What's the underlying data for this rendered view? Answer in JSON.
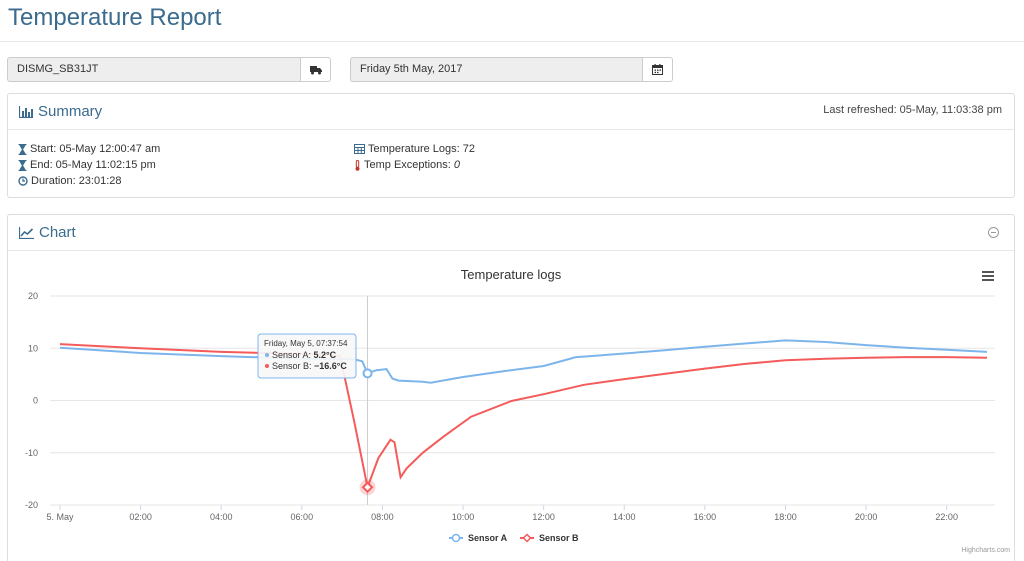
{
  "page": {
    "title": "Temperature Report"
  },
  "filters": {
    "device": {
      "value": "DISMG_SB31JT",
      "icon": "truck-icon"
    },
    "date": {
      "value": "Friday 5th May, 2017",
      "icon": "calendar-icon"
    }
  },
  "summary": {
    "title": "Summary",
    "last_refreshed": "Last refreshed: 05-May, 11:03:38 pm",
    "start": "Start: 05-May 12:00:47 am",
    "end": "End: 05-May 11:02:15 pm",
    "duration": "Duration: 23:01:28",
    "temperature_logs": "Temperature Logs: 72",
    "temp_exceptions_label": "Temp Exceptions: ",
    "temp_exceptions_value": "0"
  },
  "chart_panel": {
    "title": "Chart"
  },
  "chart_data": {
    "type": "line",
    "title": "Temperature logs",
    "xlabel": "",
    "ylabel": "",
    "x_ticks": [
      "5. May",
      "02:00",
      "04:00",
      "06:00",
      "08:00",
      "10:00",
      "12:00",
      "14:00",
      "16:00",
      "18:00",
      "20:00",
      "22:00"
    ],
    "y_ticks": [
      "20",
      "10",
      "0",
      "-10",
      "-20"
    ],
    "xlim_hours": [
      0,
      23
    ],
    "ylim": [
      -20,
      20
    ],
    "grid": true,
    "legend_placement": "bottom-center",
    "series": [
      {
        "name": "Sensor A",
        "color": "#7cb5ec",
        "points": [
          [
            0,
            10.1
          ],
          [
            2,
            9.1
          ],
          [
            4,
            8.5
          ],
          [
            6,
            8.0
          ],
          [
            7.3,
            7.9
          ],
          [
            7.5,
            7.5
          ],
          [
            7.63,
            5.2
          ],
          [
            7.85,
            5.8
          ],
          [
            8.1,
            6.0
          ],
          [
            8.25,
            4.2
          ],
          [
            8.4,
            3.8
          ],
          [
            9,
            3.6
          ],
          [
            9.2,
            3.4
          ],
          [
            10,
            4.5
          ],
          [
            11,
            5.6
          ],
          [
            12,
            6.6
          ],
          [
            12.8,
            8.3
          ],
          [
            13,
            8.4
          ],
          [
            14,
            9.0
          ],
          [
            15,
            9.6
          ],
          [
            16,
            10.3
          ],
          [
            17,
            10.9
          ],
          [
            18,
            11.5
          ],
          [
            19,
            11.2
          ],
          [
            20,
            10.6
          ],
          [
            21,
            10.1
          ],
          [
            22,
            9.7
          ],
          [
            23,
            9.3
          ]
        ]
      },
      {
        "name": "Sensor B",
        "color": "#f45b5b",
        "points": [
          [
            0,
            10.8
          ],
          [
            2,
            10.0
          ],
          [
            4,
            9.3
          ],
          [
            5.5,
            9.0
          ],
          [
            6.5,
            8.8
          ],
          [
            6.95,
            8.5
          ],
          [
            7.3,
            -4
          ],
          [
            7.63,
            -16.6
          ],
          [
            7.9,
            -11
          ],
          [
            8.2,
            -7.5
          ],
          [
            8.3,
            -8
          ],
          [
            8.45,
            -14.7
          ],
          [
            8.6,
            -13
          ],
          [
            9,
            -10
          ],
          [
            9.5,
            -7
          ],
          [
            10.2,
            -3.1
          ],
          [
            11.2,
            -0.1
          ],
          [
            12,
            1.2
          ],
          [
            13,
            3.0
          ],
          [
            14,
            4.1
          ],
          [
            15,
            5.1
          ],
          [
            16,
            6.1
          ],
          [
            17,
            7.0
          ],
          [
            18,
            7.7
          ],
          [
            19,
            8.0
          ],
          [
            20,
            8.2
          ],
          [
            21,
            8.3
          ],
          [
            22,
            8.3
          ],
          [
            23,
            8.2
          ]
        ]
      }
    ],
    "tooltip": {
      "header": "Friday, May 5, 07:37:54",
      "hour": 7.63,
      "rows": [
        {
          "label": "Sensor A: ",
          "value": "5.2°C",
          "color": "#7cb5ec"
        },
        {
          "label": "Sensor B: ",
          "value": "−16.6°C",
          "color": "#f45b5b"
        }
      ]
    },
    "credits": "Highcharts.com"
  }
}
